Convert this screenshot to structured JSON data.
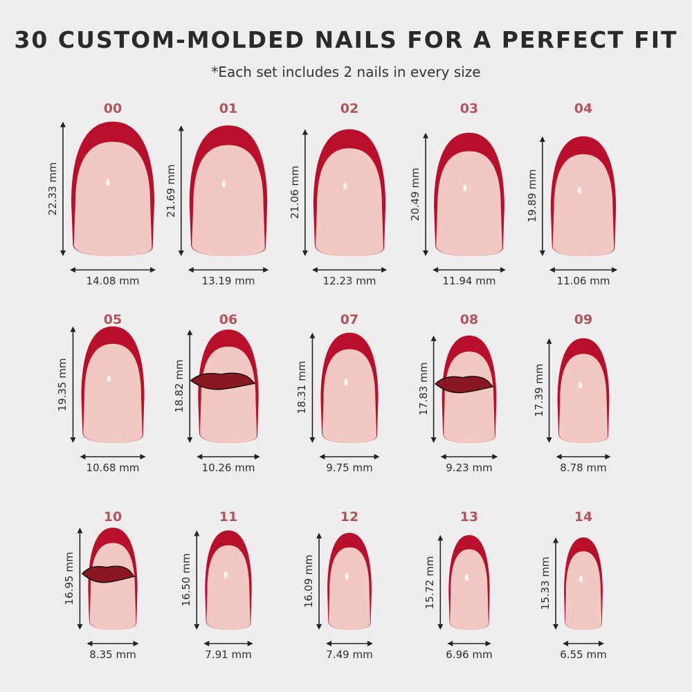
{
  "header": {
    "title": "30 CUSTOM-MOLDED NAILS FOR A PERFECT FIT",
    "subtitle": "*Each set includes 2 nails in every size"
  },
  "colors": {
    "tip": "#b8102a",
    "body": "#f2c8c2",
    "label": "#b0545e",
    "background": "#efeded",
    "decal": "#8a1822"
  },
  "nails": [
    {
      "size": "00",
      "length": "22.33 mm",
      "width": "14.08 mm",
      "length_mm": 22.33,
      "width_mm": 14.08,
      "decal": false
    },
    {
      "size": "01",
      "length": "21.69 mm",
      "width": "13.19 mm",
      "length_mm": 21.69,
      "width_mm": 13.19,
      "decal": false
    },
    {
      "size": "02",
      "length": "21.06 mm",
      "width": "12.23 mm",
      "length_mm": 21.06,
      "width_mm": 12.23,
      "decal": false
    },
    {
      "size": "03",
      "length": "20.49 mm",
      "width": "11.94 mm",
      "length_mm": 20.49,
      "width_mm": 11.94,
      "decal": false
    },
    {
      "size": "04",
      "length": "19.89 mm",
      "width": "11.06 mm",
      "length_mm": 19.89,
      "width_mm": 11.06,
      "decal": false
    },
    {
      "size": "05",
      "length": "19.35 mm",
      "width": "10.68 mm",
      "length_mm": 19.35,
      "width_mm": 10.68,
      "decal": false
    },
    {
      "size": "06",
      "length": "18.82 mm",
      "width": "10.26 mm",
      "length_mm": 18.82,
      "width_mm": 10.26,
      "decal": true
    },
    {
      "size": "07",
      "length": "18.31 mm",
      "width": "9.75 mm",
      "length_mm": 18.31,
      "width_mm": 9.75,
      "decal": false
    },
    {
      "size": "08",
      "length": "17.83 mm",
      "width": "9.23 mm",
      "length_mm": 17.83,
      "width_mm": 9.23,
      "decal": true
    },
    {
      "size": "09",
      "length": "17.39 mm",
      "width": "8.78 mm",
      "length_mm": 17.39,
      "width_mm": 8.78,
      "decal": false
    },
    {
      "size": "10",
      "length": "16.95 mm",
      "width": "8.35 mm",
      "length_mm": 16.95,
      "width_mm": 8.35,
      "decal": true
    },
    {
      "size": "11",
      "length": "16.50 mm",
      "width": "7.91 mm",
      "length_mm": 16.5,
      "width_mm": 7.91,
      "decal": false
    },
    {
      "size": "12",
      "length": "16.09 mm",
      "width": "7.49 mm",
      "length_mm": 16.09,
      "width_mm": 7.49,
      "decal": false
    },
    {
      "size": "13",
      "length": "15.72 mm",
      "width": "6.96 mm",
      "length_mm": 15.72,
      "width_mm": 6.96,
      "decal": false
    },
    {
      "size": "14",
      "length": "15.33 mm",
      "width": "6.55 mm",
      "length_mm": 15.33,
      "width_mm": 6.55,
      "decal": false
    }
  ]
}
